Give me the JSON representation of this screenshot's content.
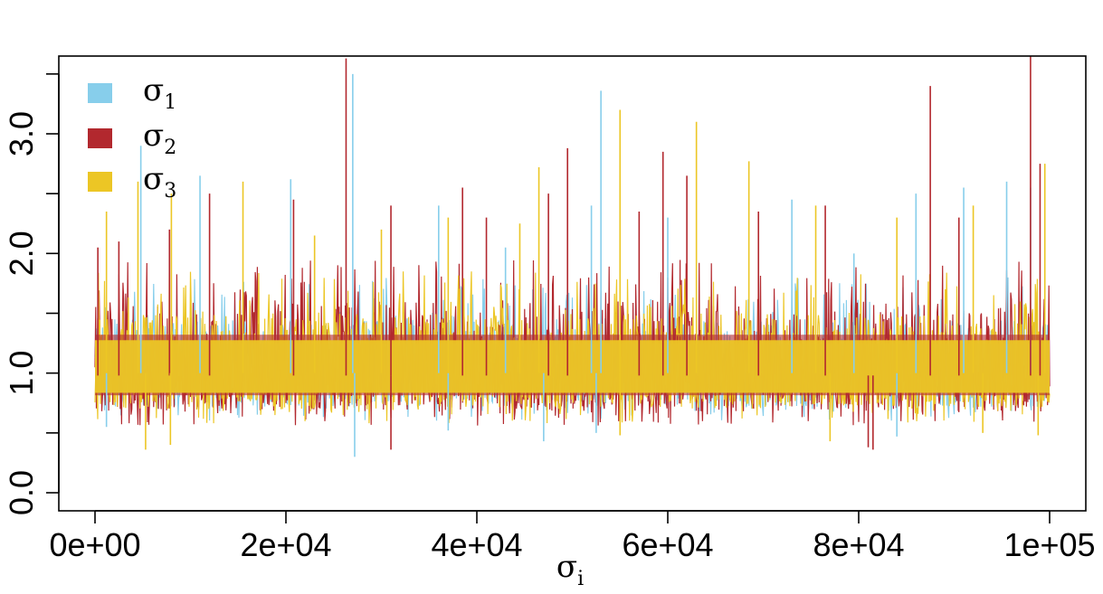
{
  "chart_data": {
    "type": "line",
    "title": "",
    "xlabel": "σ",
    "xlabel_subscript": "i",
    "ylabel": "",
    "xlim": [
      0,
      100000
    ],
    "ylim": [
      0,
      3.6
    ],
    "x_ticks": [
      0,
      20000,
      40000,
      60000,
      80000,
      100000
    ],
    "x_tick_labels": [
      "0e+00",
      "2e+04",
      "4e+04",
      "6e+04",
      "8e+04",
      "1e+05"
    ],
    "y_ticks": [
      0,
      0.5,
      1,
      1.5,
      2,
      2.5,
      3,
      3.5
    ],
    "y_tick_labels": [
      "0.0",
      "",
      "1.0",
      "",
      "2.0",
      "",
      "3.0",
      ""
    ],
    "grid": false,
    "legend_position": "top-left",
    "series": [
      {
        "name": "σ",
        "subscript": "1",
        "color": "#87CEEB",
        "center": 1.0,
        "band_low": 0.72,
        "band_high": 1.45,
        "spikes": [
          [
            4800,
            2.9
          ],
          [
            11000,
            2.65
          ],
          [
            20500,
            2.62
          ],
          [
            27000,
            3.5
          ],
          [
            36000,
            2.4
          ],
          [
            43000,
            2.05
          ],
          [
            52000,
            2.4
          ],
          [
            53000,
            3.36
          ],
          [
            60000,
            2.3
          ],
          [
            73000,
            2.45
          ],
          [
            79500,
            2.0
          ],
          [
            86000,
            2.5
          ],
          [
            91000,
            2.55
          ],
          [
            95500,
            2.6
          ],
          [
            98000,
            2.55
          ],
          [
            1200,
            0.55
          ],
          [
            27200,
            0.3
          ],
          [
            37000,
            0.52
          ],
          [
            47000,
            0.43
          ],
          [
            52500,
            0.5
          ],
          [
            84000,
            0.47
          ]
        ]
      },
      {
        "name": "σ",
        "subscript": "2",
        "color": "#B2282E",
        "center": 0.98,
        "band_low": 0.68,
        "band_high": 1.6,
        "spikes": [
          [
            300,
            2.05
          ],
          [
            2500,
            2.1
          ],
          [
            7800,
            2.2
          ],
          [
            12000,
            2.5
          ],
          [
            20800,
            2.45
          ],
          [
            26300,
            3.63
          ],
          [
            31000,
            2.4
          ],
          [
            38500,
            2.55
          ],
          [
            41000,
            2.3
          ],
          [
            47500,
            2.5
          ],
          [
            49500,
            2.88
          ],
          [
            57000,
            2.35
          ],
          [
            59500,
            2.85
          ],
          [
            62000,
            2.65
          ],
          [
            69500,
            2.35
          ],
          [
            76500,
            2.4
          ],
          [
            87500,
            3.4
          ],
          [
            90500,
            2.3
          ],
          [
            98000,
            3.65
          ],
          [
            99000,
            2.75
          ],
          [
            31000,
            0.36
          ],
          [
            81000,
            0.38
          ],
          [
            81500,
            0.36
          ]
        ]
      },
      {
        "name": "σ",
        "subscript": "3",
        "color": "#ECC625",
        "center": 1.0,
        "band_low": 0.7,
        "band_high": 1.5,
        "spikes": [
          [
            1200,
            2.35
          ],
          [
            4500,
            2.6
          ],
          [
            8000,
            2.5
          ],
          [
            15500,
            2.6
          ],
          [
            23000,
            2.15
          ],
          [
            30000,
            2.2
          ],
          [
            37000,
            2.3
          ],
          [
            44500,
            2.25
          ],
          [
            46500,
            2.72
          ],
          [
            55000,
            3.2
          ],
          [
            63000,
            3.1
          ],
          [
            68500,
            2.77
          ],
          [
            75500,
            2.4
          ],
          [
            84000,
            2.3
          ],
          [
            92000,
            2.4
          ],
          [
            99500,
            2.75
          ],
          [
            5300,
            0.36
          ],
          [
            7900,
            0.4
          ],
          [
            55000,
            0.48
          ],
          [
            77000,
            0.43
          ],
          [
            93000,
            0.5
          ],
          [
            98800,
            0.48
          ]
        ]
      }
    ]
  }
}
